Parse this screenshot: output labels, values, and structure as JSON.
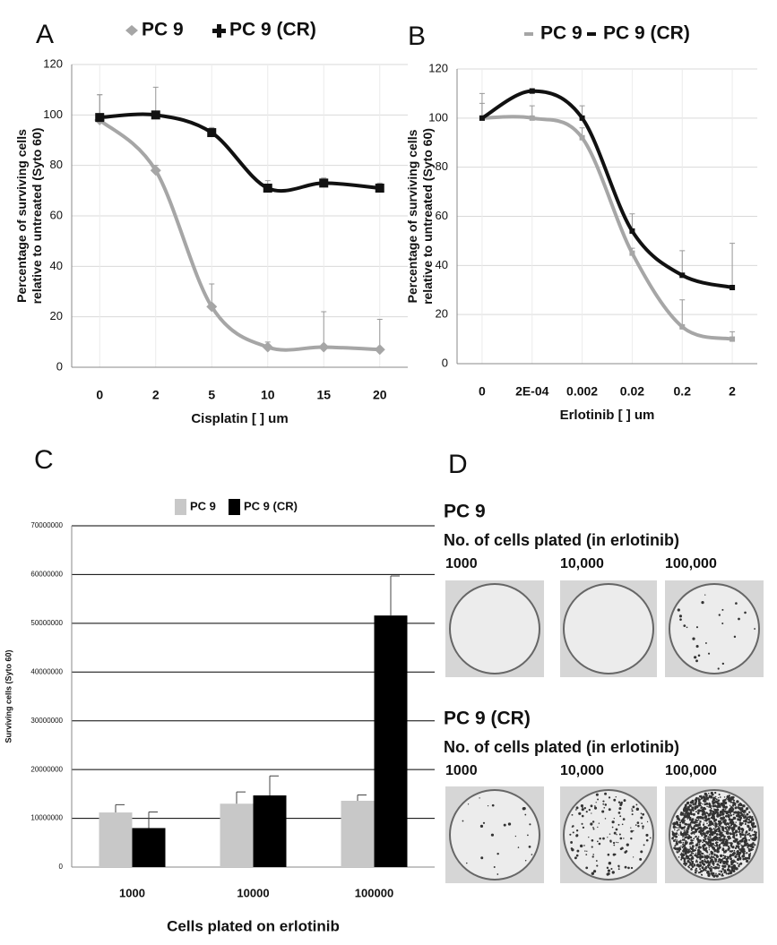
{
  "panels": [
    "A",
    "B",
    "C",
    "D"
  ],
  "chart_data": [
    {
      "type": "line",
      "categories": [
        "0",
        "2",
        "5",
        "10",
        "15",
        "20"
      ],
      "xlabel": "Cisplatin [ ] um",
      "ylabel": [
        "Percentage of surviving cells",
        "relative to untreated (Syto 60)"
      ],
      "ylim": [
        0,
        120
      ],
      "yticks": [
        0,
        20,
        40,
        60,
        80,
        100,
        120
      ],
      "grid": true,
      "series": [
        {
          "name": "PC 9",
          "color": "#a6a6a6",
          "marker": "diamond",
          "values": [
            98,
            78,
            24,
            8,
            8,
            7
          ],
          "errors": [
            10,
            2,
            9,
            2,
            14,
            12
          ]
        },
        {
          "name": "PC 9 (CR)",
          "color": "#111111",
          "marker": "square",
          "values": [
            99,
            100,
            93,
            71,
            73,
            71
          ],
          "errors": [
            9,
            11,
            2,
            3,
            2,
            2
          ]
        }
      ]
    },
    {
      "type": "line",
      "categories": [
        "0",
        "2E-04",
        "0.002",
        "0.02",
        "0.2",
        "2"
      ],
      "xlabel": "Erlotinib [ ] um",
      "ylabel": [
        "Percentage of surviving cells",
        "relative to untreated (Syto 60)"
      ],
      "ylim": [
        0,
        120
      ],
      "yticks": [
        0,
        20,
        40,
        60,
        80,
        100,
        120
      ],
      "grid": true,
      "series": [
        {
          "name": "PC 9",
          "color": "#a6a6a6",
          "marker": "dash",
          "values": [
            100,
            100,
            92,
            45,
            15,
            10
          ],
          "errors": [
            6,
            5,
            4,
            2,
            11,
            3
          ]
        },
        {
          "name": "PC 9 (CR)",
          "color": "#111111",
          "marker": "dash",
          "values": [
            100,
            111,
            100,
            54,
            36,
            31
          ],
          "errors": [
            10,
            1,
            5,
            7,
            10,
            18
          ]
        }
      ]
    },
    {
      "type": "bar",
      "categories": [
        "1000",
        "10000",
        "100000"
      ],
      "xlabel": "Cells plated on erlotinib",
      "ylabel": [
        "Surviving cells (Syto 60)"
      ],
      "ylim": [
        0,
        70000000
      ],
      "yticks": [
        0,
        10000000,
        20000000,
        30000000,
        40000000,
        50000000,
        60000000,
        70000000
      ],
      "grid": true,
      "series": [
        {
          "name": "PC 9",
          "color": "#c8c8c8",
          "values": [
            11200000,
            13000000,
            13600000
          ],
          "errors": [
            1600000,
            2400000,
            1200000
          ]
        },
        {
          "name": "PC 9 (CR)",
          "color": "#000000",
          "values": [
            8000000,
            14700000,
            51600000
          ],
          "errors": [
            3300000,
            4000000,
            8100000
          ]
        }
      ]
    }
  ],
  "panel_d": {
    "groups": [
      {
        "title": "PC 9",
        "subtitle": "No. of cells plated (in erlotinib)",
        "counts": [
          "1000",
          "10,000",
          "100,000"
        ]
      },
      {
        "title": "PC 9 (CR)",
        "subtitle": "No. of cells plated (in erlotinib)",
        "counts": [
          "1000",
          "10,000",
          "100,000"
        ]
      }
    ]
  }
}
